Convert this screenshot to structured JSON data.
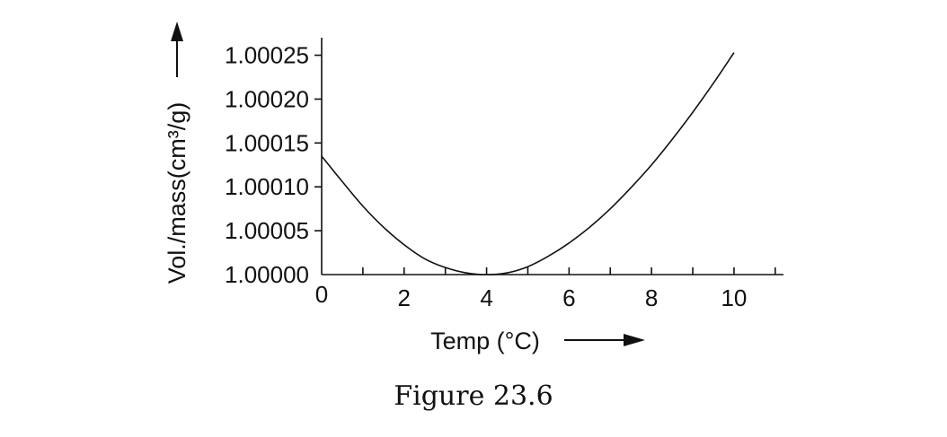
{
  "chart_data": {
    "type": "line",
    "xlabel": "Temp (°C)",
    "ylabel": "Vol./mass(cm³/g)",
    "caption": "Figure 23.6",
    "xlim": [
      0,
      11.2
    ],
    "ylim": [
      1.0,
      1.00027
    ],
    "x_ticks": [
      0,
      1,
      2,
      3,
      4,
      5,
      6,
      7,
      8,
      9,
      10,
      11
    ],
    "x_tick_labels": [
      {
        "x": 0,
        "label": "0"
      },
      {
        "x": 2,
        "label": "2"
      },
      {
        "x": 4,
        "label": "4"
      },
      {
        "x": 6,
        "label": "6"
      },
      {
        "x": 8,
        "label": "8"
      },
      {
        "x": 10,
        "label": "10"
      }
    ],
    "y_ticks": [
      {
        "y": 1.0,
        "label": "1.00000"
      },
      {
        "y": 1.00005,
        "label": "1.00005"
      },
      {
        "y": 1.0001,
        "label": "1.00010"
      },
      {
        "y": 1.00015,
        "label": "1.00015"
      },
      {
        "y": 1.0002,
        "label": "1.00020"
      },
      {
        "y": 1.00025,
        "label": "1.00025"
      }
    ],
    "grid": false,
    "series": [
      {
        "x": [
          0,
          0.5,
          1,
          1.5,
          2,
          2.5,
          3,
          3.5,
          4,
          4.5,
          5,
          5.5,
          6,
          6.5,
          7,
          7.5,
          8,
          8.5,
          9,
          9.5,
          10
        ],
        "y": [
          1.000135,
          1.000106,
          1.000078,
          1.000054,
          1.000034,
          1.000018,
          1.000008,
          1.000002,
          1.0,
          1.000002,
          1.000009,
          1.000021,
          1.000036,
          1.000054,
          1.000075,
          1.000099,
          1.000125,
          1.000154,
          1.000185,
          1.000218,
          1.000253
        ]
      }
    ]
  }
}
